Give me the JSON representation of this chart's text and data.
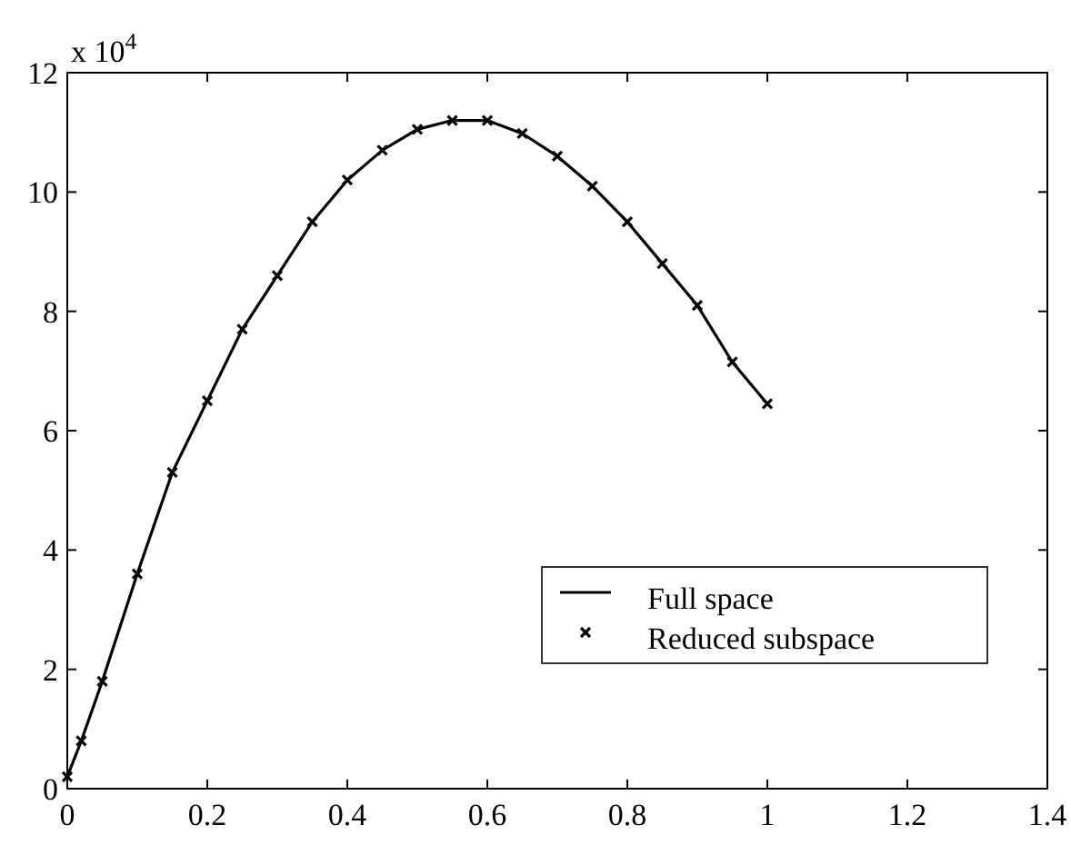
{
  "chart_data": {
    "type": "line",
    "x": [
      0,
      0.02,
      0.05,
      0.1,
      0.15,
      0.2,
      0.25,
      0.3,
      0.35,
      0.4,
      0.45,
      0.5,
      0.55,
      0.6,
      0.65,
      0.7,
      0.75,
      0.8,
      0.85,
      0.9,
      0.95,
      1.0
    ],
    "series": [
      {
        "name": "Full space",
        "color": "#000000",
        "marker": "none",
        "line_style": "solid",
        "values": [
          0.2,
          0.8,
          1.8,
          3.6,
          5.3,
          6.5,
          7.7,
          8.6,
          9.5,
          10.2,
          10.7,
          11.05,
          11.2,
          11.2,
          10.98,
          10.6,
          10.1,
          9.5,
          8.8,
          8.1,
          7.15,
          6.45
        ]
      },
      {
        "name": "Reduced subspace",
        "type": "scatter",
        "color": "#000000",
        "marker": "cross",
        "values": [
          0.2,
          0.8,
          1.8,
          3.6,
          5.3,
          6.5,
          7.7,
          8.6,
          9.5,
          10.2,
          10.7,
          11.05,
          11.2,
          11.2,
          10.98,
          10.6,
          10.1,
          9.5,
          8.8,
          8.1,
          7.15,
          6.45
        ]
      }
    ],
    "xlim": [
      0,
      1.4
    ],
    "xticks": [
      0,
      0.2,
      0.4,
      0.6,
      0.8,
      1,
      1.2,
      1.4
    ],
    "ylim": [
      0,
      12
    ],
    "yticks": [
      0,
      2,
      4,
      6,
      8,
      10,
      12
    ],
    "annotations": [
      "x 10$^{4}$"
    ],
    "legend": "bottom right",
    "grid": false
  }
}
